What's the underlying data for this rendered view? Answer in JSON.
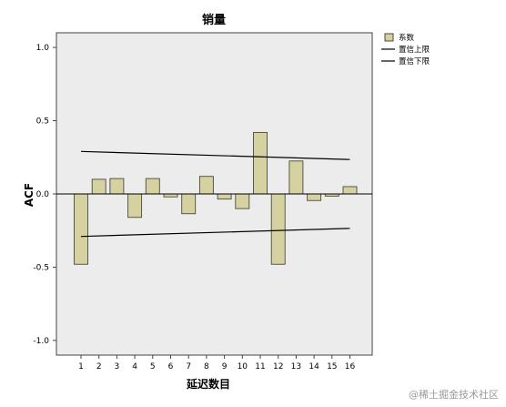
{
  "chart_data": {
    "type": "bar",
    "title": "销量",
    "xlabel": "延迟数目",
    "ylabel": "ACF",
    "ylim": [
      -1.1,
      1.1
    ],
    "yticks": [
      "1.0",
      "0.5",
      "0.0",
      "-0.5",
      "-1.0"
    ],
    "ytick_values": [
      1.0,
      0.5,
      0.0,
      -0.5,
      -1.0
    ],
    "categories": [
      "1",
      "2",
      "3",
      "4",
      "5",
      "6",
      "7",
      "8",
      "9",
      "10",
      "11",
      "12",
      "13",
      "14",
      "15",
      "16"
    ],
    "series": [
      {
        "name": "系数",
        "values": [
          -0.48,
          0.1,
          0.105,
          -0.16,
          0.105,
          -0.02,
          -0.135,
          0.12,
          -0.035,
          -0.1,
          0.42,
          -0.48,
          0.225,
          -0.045,
          -0.015,
          0.05
        ]
      },
      {
        "name": "置信上限",
        "start": 0.29,
        "end": 0.235
      },
      {
        "name": "置信下限",
        "start": -0.29,
        "end": -0.235
      }
    ],
    "grid": false,
    "legend": "top-right",
    "colors": {
      "bar_fill": "#d5d1a1",
      "bar_stroke": "#4a4a3a",
      "plot_bg": "#ececec",
      "line": "#000000"
    }
  },
  "watermark": "@稀土掘金技术社区"
}
